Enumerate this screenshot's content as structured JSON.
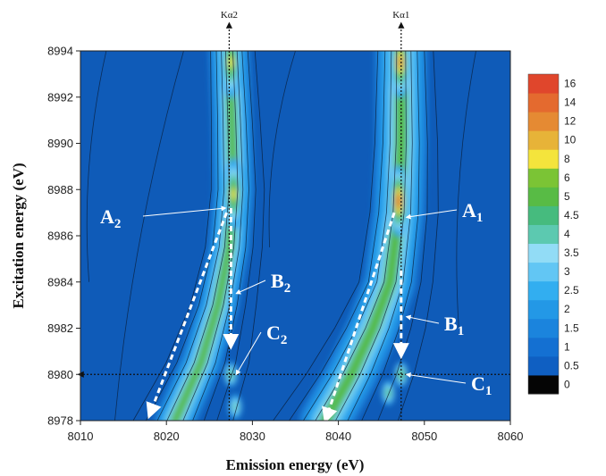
{
  "chart_data": {
    "type": "heatmap",
    "title": "",
    "xlabel": "Emission energy (eV)",
    "ylabel": "Excitation energy (eV)",
    "xlim": [
      8010,
      8060
    ],
    "ylim": [
      8978,
      8994
    ],
    "x_ticks": [
      "8010",
      "8020",
      "8030",
      "8040",
      "8050",
      "8060"
    ],
    "y_ticks": [
      "8978",
      "8980",
      "8982",
      "8984",
      "8986",
      "8988",
      "8990",
      "8992",
      "8994"
    ],
    "colorbar": {
      "levels": [
        "0",
        "0.5",
        "1",
        "1.5",
        "2",
        "2.5",
        "3",
        "3.5",
        "4",
        "4.5",
        "5",
        "6",
        "8",
        "10",
        "12",
        "14",
        "16"
      ],
      "colors": [
        "#050505",
        "#0f5fc2",
        "#1470d2",
        "#1b84dd",
        "#2398e6",
        "#32aef0",
        "#62c6f4",
        "#92dcf6",
        "#5cc9b0",
        "#46bb7e",
        "#58bb45",
        "#7bc435",
        "#f4e43c",
        "#e7b338",
        "#e58a33",
        "#e46a2f",
        "#e0462c"
      ]
    },
    "background_color": "#0f5bb8",
    "reference_lines": [
      {
        "name": "Kα2",
        "orientation": "vertical",
        "x": 8027.3
      },
      {
        "name": "Kα1",
        "orientation": "vertical",
        "x": 8047.3
      },
      {
        "name": "",
        "orientation": "horizontal",
        "y": 8980
      }
    ],
    "annotations": [
      {
        "label": "A",
        "sub": "2",
        "target_x": 8027.5,
        "target_y": 8987.2
      },
      {
        "label": "B",
        "sub": "2",
        "target_x": 8027.5,
        "target_y": 8983.5
      },
      {
        "label": "C",
        "sub": "2",
        "target_x": 8027.5,
        "target_y": 8980
      },
      {
        "label": "A",
        "sub": "1",
        "target_x": 8047.3,
        "target_y": 8986.8
      },
      {
        "label": "B",
        "sub": "1",
        "target_x": 8047.3,
        "target_y": 8982.5
      },
      {
        "label": "C",
        "sub": "1",
        "target_x": 8047.3,
        "target_y": 8980
      }
    ],
    "ridges": [
      {
        "name": "Kα2 band",
        "points": [
          [
            8027.3,
            8994
          ],
          [
            8027.6,
            8991
          ],
          [
            8027.8,
            8988
          ],
          [
            8027.3,
            8985.5
          ],
          [
            8026,
            8983
          ],
          [
            8024,
            8980.5
          ],
          [
            8021,
            8978
          ]
        ]
      },
      {
        "name": "Kα1 band",
        "points": [
          [
            8047.3,
            8994
          ],
          [
            8047.3,
            8990
          ],
          [
            8047.0,
            8987
          ],
          [
            8046.0,
            8984
          ],
          [
            8044.0,
            8982
          ],
          [
            8041.5,
            8980
          ],
          [
            8038.5,
            8978
          ]
        ]
      }
    ],
    "peaks": [
      {
        "x": 8027.5,
        "y": 8993.5,
        "value": 8
      },
      {
        "x": 8027.8,
        "y": 8987.8,
        "value": 8
      },
      {
        "x": 8047.2,
        "y": 8993.5,
        "value": 12
      },
      {
        "x": 8047.0,
        "y": 8987.5,
        "value": 14
      },
      {
        "x": 8047.3,
        "y": 8980,
        "value": 5
      },
      {
        "x": 8045.8,
        "y": 8979.2,
        "value": 4.5
      },
      {
        "x": 8027.5,
        "y": 8980,
        "value": 4.5
      },
      {
        "x": 8028.0,
        "y": 8978.6,
        "value": 4
      }
    ],
    "dashed_guides": [
      {
        "from": [
          8027.5,
          8987.2
        ],
        "to": [
          8027.5,
          8981.2
        ]
      },
      {
        "from": [
          8027.0,
          8987.0
        ],
        "to": [
          8018.0,
          8978.2
        ]
      },
      {
        "from": [
          8047.3,
          8984.5
        ],
        "to": [
          8047.3,
          8980.8
        ]
      },
      {
        "from": [
          8046.5,
          8987.0
        ],
        "to": [
          8038.5,
          8978.0
        ]
      }
    ]
  }
}
